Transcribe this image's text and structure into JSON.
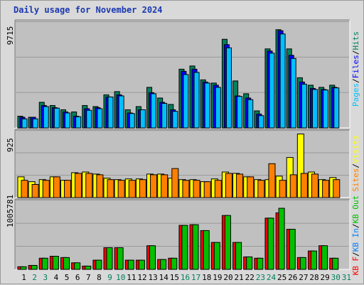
{
  "title": "Daily usage for November 2024",
  "colors": {
    "hits": "#00805c",
    "files": "#0000ff",
    "pages": "#00c0ff",
    "visits": "#ffff00",
    "sites": "#ff8000",
    "kbin": "#0080ff",
    "kbout": "#00c000",
    "kbf": "#ff0000",
    "panel_bg": "#c0c0c0",
    "grid": "#999999"
  },
  "chart_data": [
    {
      "type": "bar",
      "panel": "hits-files-pages",
      "ymax_label": "9715",
      "ylim": [
        0,
        9715
      ],
      "legend": [
        "Pages",
        "Files",
        "Hits"
      ],
      "categories": [
        "1",
        "2",
        "3",
        "4",
        "5",
        "6",
        "7",
        "8",
        "9",
        "10",
        "11",
        "12",
        "13",
        "14",
        "15",
        "16",
        "17",
        "18",
        "19",
        "20",
        "21",
        "22",
        "23",
        "24",
        "25",
        "26",
        "27",
        "28",
        "29",
        "30",
        "31"
      ],
      "weekend_days": [
        "2",
        "3",
        "9",
        "10",
        "16",
        "17",
        "23",
        "24",
        "30",
        "31"
      ],
      "series": [
        {
          "name": "Hits",
          "values": [
            1100,
            1000,
            2400,
            2100,
            1700,
            1500,
            2100,
            2000,
            3100,
            3400,
            1700,
            2000,
            3800,
            2800,
            2200,
            5500,
            5800,
            4500,
            4200,
            8300,
            4400,
            3200,
            1600,
            7400,
            9200,
            7400,
            4700,
            4000,
            3800,
            4000,
            0
          ]
        },
        {
          "name": "Files",
          "values": [
            1000,
            1000,
            2100,
            1900,
            1500,
            1100,
            1800,
            1900,
            2900,
            3100,
            1400,
            1700,
            3300,
            2400,
            1700,
            5300,
            5500,
            4300,
            4000,
            7800,
            3000,
            2800,
            1300,
            7200,
            9100,
            6800,
            4300,
            3700,
            3600,
            3800,
            0
          ]
        },
        {
          "name": "Pages",
          "values": [
            850,
            850,
            2000,
            1850,
            1400,
            1050,
            1650,
            1800,
            2900,
            3000,
            1350,
            1700,
            3200,
            2300,
            1550,
            5000,
            5200,
            4200,
            3800,
            7500,
            2950,
            2650,
            1150,
            7000,
            8800,
            6500,
            4100,
            3600,
            3550,
            3750,
            0
          ]
        }
      ]
    },
    {
      "type": "bar",
      "panel": "visits-sites",
      "ymax_label": "925",
      "ylim": [
        0,
        925
      ],
      "legend": [
        "Sites",
        "Visits"
      ],
      "categories": [
        "1",
        "2",
        "3",
        "4",
        "5",
        "6",
        "7",
        "8",
        "9",
        "10",
        "11",
        "12",
        "13",
        "14",
        "15",
        "16",
        "17",
        "18",
        "19",
        "20",
        "21",
        "22",
        "23",
        "24",
        "25",
        "26",
        "27",
        "28",
        "29",
        "30",
        "31"
      ],
      "series": [
        {
          "name": "Visits",
          "values": [
            300,
            230,
            260,
            300,
            250,
            360,
            370,
            340,
            280,
            260,
            270,
            270,
            340,
            340,
            280,
            260,
            260,
            230,
            270,
            370,
            350,
            300,
            260,
            260,
            310,
            580,
            920,
            370,
            260,
            290,
            0
          ]
        },
        {
          "name": "Sites",
          "values": [
            250,
            190,
            250,
            300,
            250,
            350,
            350,
            330,
            260,
            250,
            250,
            260,
            330,
            330,
            420,
            250,
            250,
            230,
            250,
            350,
            340,
            300,
            250,
            490,
            250,
            330,
            350,
            340,
            250,
            260,
            0
          ]
        }
      ]
    },
    {
      "type": "bar",
      "panel": "kbin-kbout",
      "ymax_label": "1005781",
      "ylim": [
        0,
        1005781
      ],
      "legend": [
        "KB F",
        "KB In",
        "KB Out"
      ],
      "categories": [
        "1",
        "2",
        "3",
        "4",
        "5",
        "6",
        "7",
        "8",
        "9",
        "10",
        "11",
        "12",
        "13",
        "14",
        "15",
        "16",
        "17",
        "18",
        "19",
        "20",
        "21",
        "22",
        "23",
        "24",
        "25",
        "26",
        "27",
        "28",
        "29",
        "30",
        "31"
      ],
      "series": [
        {
          "name": "KB F",
          "values": [
            40000,
            60000,
            170000,
            200000,
            180000,
            100000,
            50000,
            140000,
            330000,
            330000,
            140000,
            140000,
            360000,
            150000,
            170000,
            670000,
            680000,
            590000,
            410000,
            820000,
            410000,
            190000,
            170000,
            780000,
            860000,
            610000,
            180000,
            280000,
            360000,
            170000,
            0
          ]
        },
        {
          "name": "KB Out",
          "values": [
            40000,
            60000,
            170000,
            200000,
            180000,
            100000,
            50000,
            140000,
            330000,
            330000,
            140000,
            140000,
            360000,
            150000,
            170000,
            670000,
            680000,
            590000,
            410000,
            820000,
            410000,
            190000,
            170000,
            780000,
            930000,
            610000,
            180000,
            280000,
            360000,
            170000,
            0
          ]
        }
      ]
    }
  ]
}
